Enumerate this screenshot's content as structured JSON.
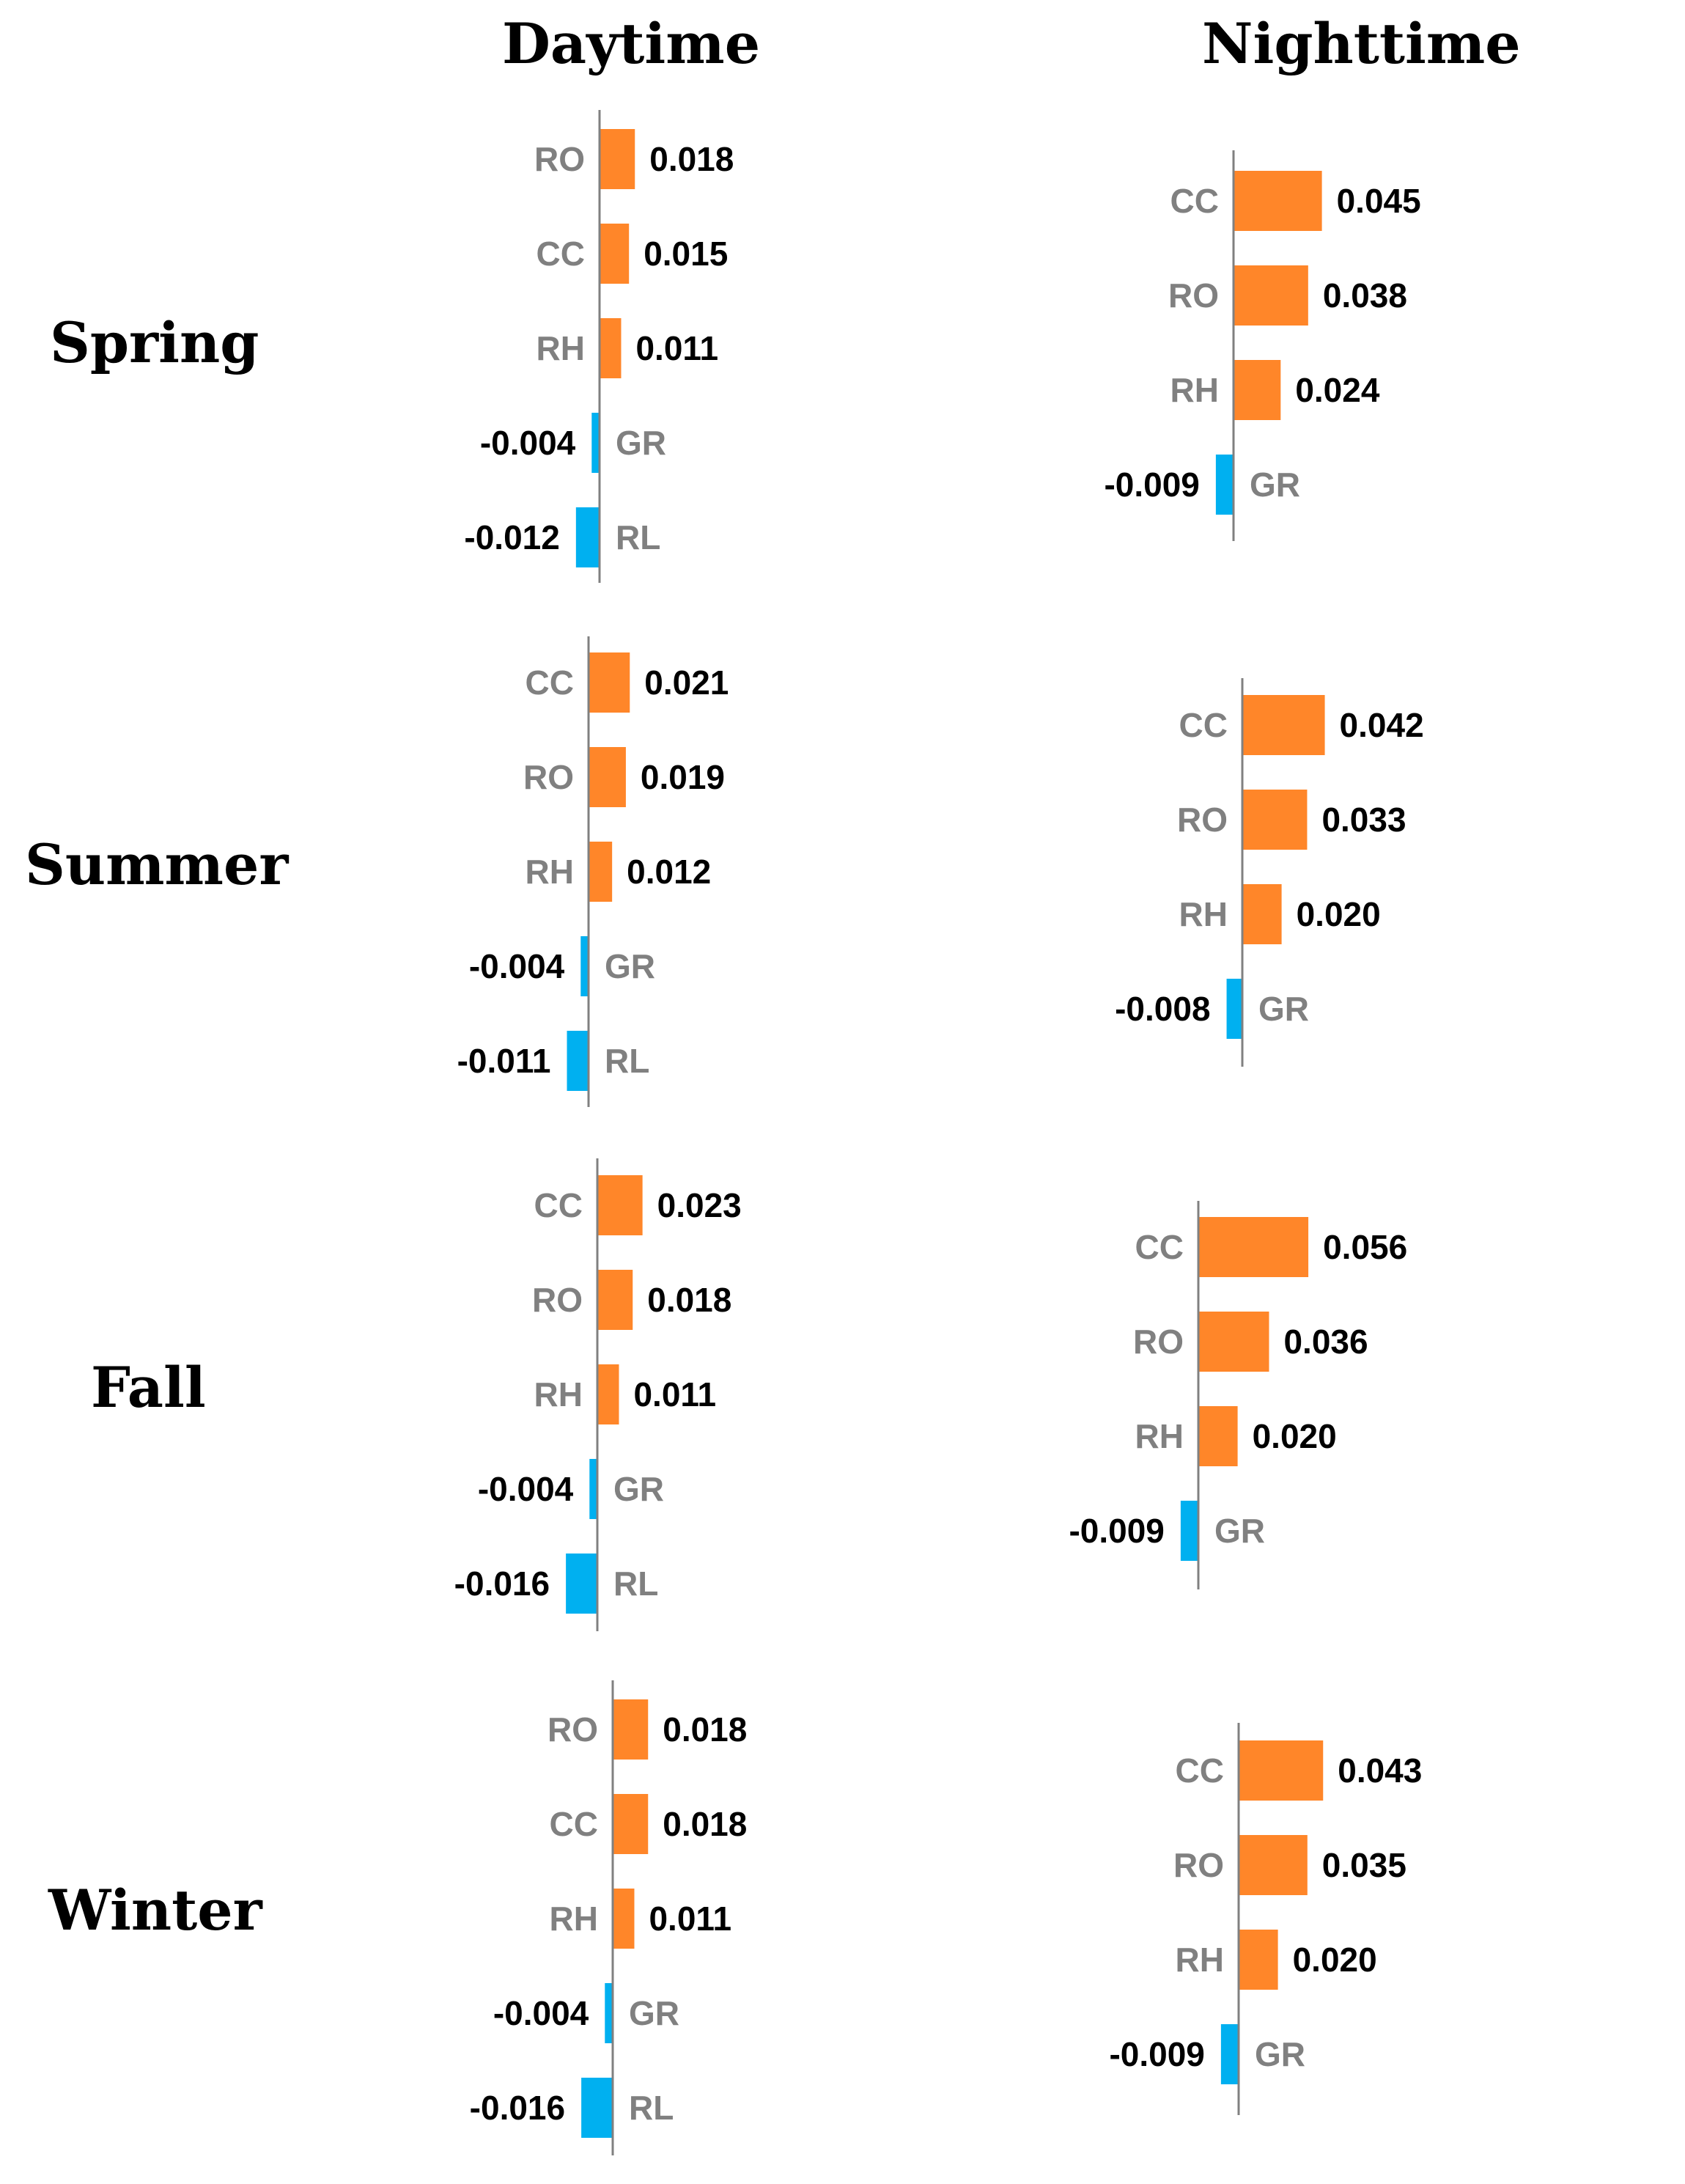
{
  "columns": [
    "Daytime",
    "Nighttime"
  ],
  "rows": [
    "Spring",
    "Summer",
    "Fall",
    "Winter"
  ],
  "colors": {
    "positive": "#FF8629",
    "negative": "#00B0F0",
    "axis": "#808080",
    "category": "#808080",
    "value": "#000000"
  },
  "chart_data": [
    {
      "type": "bar",
      "orientation": "horizontal",
      "season": "Spring",
      "period": "Daytime",
      "categories": [
        "RO",
        "CC",
        "RH",
        "GR",
        "RL"
      ],
      "values": [
        0.018,
        0.015,
        0.011,
        -0.004,
        -0.012
      ],
      "value_labels": [
        "0.018",
        "0.015",
        "0.011",
        "-0.004",
        "-0.012"
      ]
    },
    {
      "type": "bar",
      "orientation": "horizontal",
      "season": "Spring",
      "period": "Nighttime",
      "categories": [
        "CC",
        "RO",
        "RH",
        "GR"
      ],
      "values": [
        0.045,
        0.038,
        0.024,
        -0.009
      ],
      "value_labels": [
        "0.045",
        "0.038",
        "0.024",
        "-0.009"
      ]
    },
    {
      "type": "bar",
      "orientation": "horizontal",
      "season": "Summer",
      "period": "Daytime",
      "categories": [
        "CC",
        "RO",
        "RH",
        "GR",
        "RL"
      ],
      "values": [
        0.021,
        0.019,
        0.012,
        -0.004,
        -0.011
      ],
      "value_labels": [
        "0.021",
        "0.019",
        "0.012",
        "-0.004",
        "-0.011"
      ]
    },
    {
      "type": "bar",
      "orientation": "horizontal",
      "season": "Summer",
      "period": "Nighttime",
      "categories": [
        "CC",
        "RO",
        "RH",
        "GR"
      ],
      "values": [
        0.042,
        0.033,
        0.02,
        -0.008
      ],
      "value_labels": [
        "0.042",
        "0.033",
        "0.020",
        "-0.008"
      ]
    },
    {
      "type": "bar",
      "orientation": "horizontal",
      "season": "Fall",
      "period": "Daytime",
      "categories": [
        "CC",
        "RO",
        "RH",
        "GR",
        "RL"
      ],
      "values": [
        0.023,
        0.018,
        0.011,
        -0.004,
        -0.016
      ],
      "value_labels": [
        "0.023",
        "0.018",
        "0.011",
        "-0.004",
        "-0.016"
      ]
    },
    {
      "type": "bar",
      "orientation": "horizontal",
      "season": "Fall",
      "period": "Nighttime",
      "categories": [
        "CC",
        "RO",
        "RH",
        "GR"
      ],
      "values": [
        0.056,
        0.036,
        0.02,
        -0.009
      ],
      "value_labels": [
        "0.056",
        "0.036",
        "0.020",
        "-0.009"
      ]
    },
    {
      "type": "bar",
      "orientation": "horizontal",
      "season": "Winter",
      "period": "Daytime",
      "categories": [
        "RO",
        "CC",
        "RH",
        "GR",
        "RL"
      ],
      "values": [
        0.018,
        0.018,
        0.011,
        -0.004,
        -0.016
      ],
      "value_labels": [
        "0.018",
        "0.018",
        "0.011",
        "-0.004",
        "-0.016"
      ]
    },
    {
      "type": "bar",
      "orientation": "horizontal",
      "season": "Winter",
      "period": "Nighttime",
      "categories": [
        "CC",
        "RO",
        "RH",
        "GR"
      ],
      "values": [
        0.043,
        0.035,
        0.02,
        -0.009
      ],
      "value_labels": [
        "0.043",
        "0.035",
        "0.020",
        "-0.009"
      ]
    }
  ]
}
